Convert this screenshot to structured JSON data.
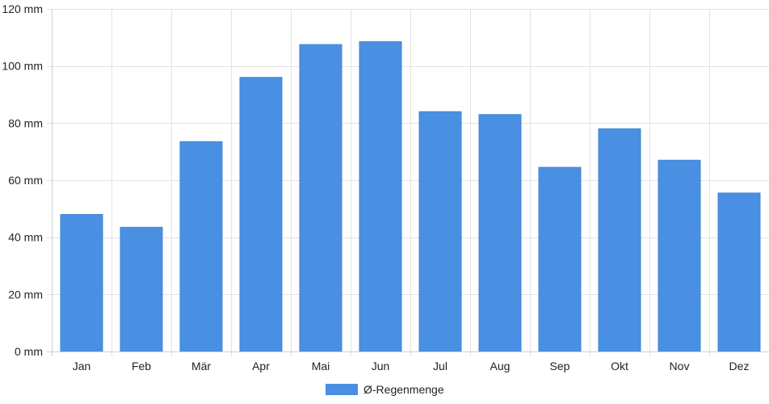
{
  "chart_data": {
    "type": "bar",
    "title": "",
    "xlabel": "",
    "ylabel": "",
    "unit": "mm",
    "ylim": [
      0,
      120
    ],
    "ytick_step": 20,
    "y_ticks": [
      "0 mm",
      "20 mm",
      "40 mm",
      "60 mm",
      "80 mm",
      "100 mm",
      "120 mm"
    ],
    "categories": [
      "Jan",
      "Feb",
      "Mär",
      "Apr",
      "Mai",
      "Jun",
      "Jul",
      "Aug",
      "Sep",
      "Okt",
      "Nov",
      "Dez"
    ],
    "series": [
      {
        "name": "Ø-Regenmenge",
        "color": "#4a90e2",
        "values": [
          48,
          43.5,
          73.5,
          96,
          107.5,
          108.5,
          84,
          83,
          64.5,
          78,
          67,
          55.5
        ]
      }
    ],
    "grid": true,
    "legend_position": "bottom-center"
  }
}
